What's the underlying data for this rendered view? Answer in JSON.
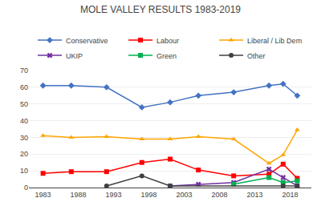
{
  "chart_data": {
    "type": "line",
    "title": "MOLE VALLEY RESULTS 1983-2019",
    "x": [
      1983,
      1987,
      1992,
      1997,
      2001,
      2005,
      2010,
      2015,
      2017,
      2019
    ],
    "series": [
      {
        "name": "Conservative",
        "color": "#4472C4",
        "marker": "diamond",
        "values": [
          61,
          61,
          60,
          48,
          51,
          55,
          57,
          61,
          62,
          55
        ]
      },
      {
        "name": "Labour",
        "color": "#FF0000",
        "marker": "square",
        "values": [
          8.5,
          9.5,
          9.5,
          15,
          17,
          10.5,
          7,
          8,
          14,
          5.5
        ]
      },
      {
        "name": "Liberal / Lib Dem",
        "color": "#FFA500",
        "marker": "triangle-up",
        "values": [
          31,
          30,
          30.5,
          29,
          29,
          30.5,
          29,
          14.5,
          19.5,
          34.5
        ]
      },
      {
        "name": "UKIP",
        "color": "#7030A0",
        "marker": "x",
        "values": [
          null,
          null,
          null,
          null,
          1,
          2,
          3,
          11,
          6,
          1
        ]
      },
      {
        "name": "Green",
        "color": "#00B050",
        "marker": "square",
        "values": [
          null,
          null,
          null,
          null,
          null,
          null,
          2,
          6,
          3,
          4
        ]
      },
      {
        "name": "Other",
        "color": "#404040",
        "marker": "circle",
        "values": [
          null,
          null,
          1,
          7,
          1,
          null,
          null,
          null,
          1,
          1
        ]
      }
    ],
    "xlim": [
      1981,
      2021
    ],
    "xticks": [
      1983,
      1988,
      1993,
      1998,
      2003,
      2008,
      2013,
      2018
    ],
    "ylim": [
      0,
      70
    ],
    "yticks": [
      0,
      10,
      20,
      30,
      40,
      50,
      60,
      70
    ],
    "grid": true,
    "legend": "top"
  }
}
